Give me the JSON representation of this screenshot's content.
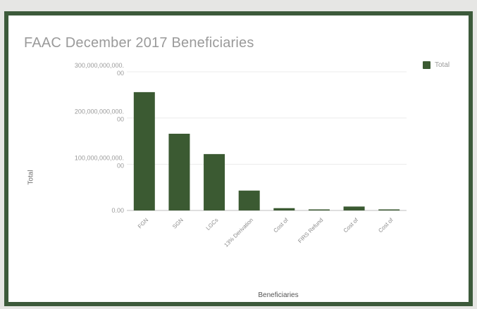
{
  "chart_data": {
    "type": "bar",
    "title": "FAAC December 2017 Beneficiaries",
    "xlabel": "Beneficiaries",
    "ylabel": "Total",
    "ylim": [
      0,
      300000000000
    ],
    "yticks": [
      {
        "value": 0,
        "label": "0.00"
      },
      {
        "value": 100000000000,
        "label": "100,000,000,000.00"
      },
      {
        "value": 200000000000,
        "label": "200,000,000,000.00"
      },
      {
        "value": 300000000000,
        "label": "300,000,000,000.00"
      }
    ],
    "categories": [
      "FGN",
      "SGN",
      "LGCs",
      "13% Derivation",
      "Cost of",
      "FIRS Refund",
      "Cost of",
      "Cost of"
    ],
    "series": [
      {
        "name": "Total",
        "color": "#3b5a32",
        "values": [
          256000000000,
          166000000000,
          122000000000,
          43000000000,
          5000000000,
          1500000000,
          8500000000,
          1500000000
        ]
      }
    ],
    "legend": {
      "position": "top-right"
    },
    "grid": true
  }
}
